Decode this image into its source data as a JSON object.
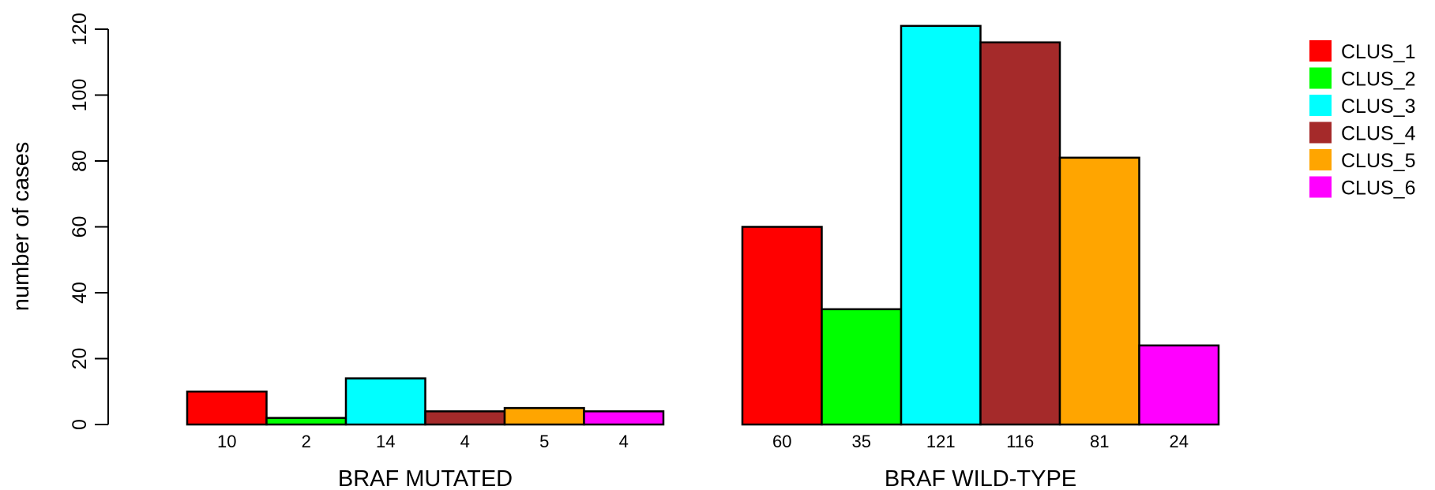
{
  "chart_data": {
    "type": "bar",
    "xlabel": "",
    "ylabel": "number of cases",
    "ylim": [
      0,
      125
    ],
    "yticks": [
      0,
      20,
      40,
      60,
      80,
      100,
      120
    ],
    "ytick_labels": [
      "0",
      "20",
      "40",
      "60",
      "80",
      "100",
      "120"
    ],
    "groups": [
      "BRAF MUTATED",
      "BRAF WILD-TYPE"
    ],
    "series": [
      {
        "name": "CLUS_1",
        "color": "#ff0000",
        "values": [
          10,
          60
        ]
      },
      {
        "name": "CLUS_2",
        "color": "#00ff00",
        "values": [
          2,
          35
        ]
      },
      {
        "name": "CLUS_3",
        "color": "#00ffff",
        "values": [
          14,
          121
        ]
      },
      {
        "name": "CLUS_4",
        "color": "#a52a2a",
        "values": [
          4,
          116
        ]
      },
      {
        "name": "CLUS_5",
        "color": "#ffa500",
        "values": [
          5,
          81
        ]
      },
      {
        "name": "CLUS_6",
        "color": "#ff00ff",
        "values": [
          4,
          24
        ]
      }
    ],
    "data_labels": [
      [
        "10",
        "2",
        "14",
        "4",
        "5",
        "4"
      ],
      [
        "60",
        "35",
        "121",
        "116",
        "81",
        "24"
      ]
    ],
    "legend": "top-right",
    "grid": false
  }
}
